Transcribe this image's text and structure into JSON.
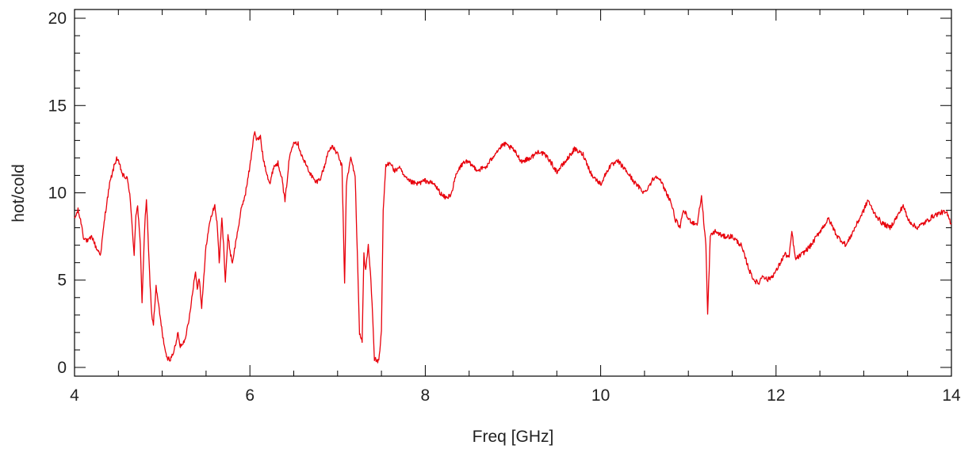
{
  "chart_data": {
    "type": "line",
    "title": "",
    "xlabel": "Freq [GHz]",
    "ylabel": "hot/cold",
    "xlim": [
      4,
      14
    ],
    "ylim": [
      -0.5,
      20.5
    ],
    "x_major_ticks": [
      4,
      6,
      8,
      10,
      12,
      14
    ],
    "x_minor_step": 0.5,
    "y_major_ticks": [
      0,
      5,
      10,
      15,
      20
    ],
    "y_minor_step": 1,
    "grid": false,
    "legend": "none",
    "series": [
      {
        "color": "#e8000b",
        "points": [
          [
            4.0,
            8.5
          ],
          [
            4.04,
            9.0
          ],
          [
            4.08,
            8.2
          ],
          [
            4.1,
            7.5
          ],
          [
            4.15,
            7.2
          ],
          [
            4.2,
            7.5
          ],
          [
            4.25,
            6.8
          ],
          [
            4.3,
            6.5
          ],
          [
            4.32,
            7.5
          ],
          [
            4.35,
            8.8
          ],
          [
            4.4,
            10.5
          ],
          [
            4.45,
            11.5
          ],
          [
            4.48,
            12.0
          ],
          [
            4.52,
            11.5
          ],
          [
            4.55,
            11.0
          ],
          [
            4.6,
            10.8
          ],
          [
            4.63,
            10.0
          ],
          [
            4.65,
            8.5
          ],
          [
            4.68,
            6.5
          ],
          [
            4.7,
            8.8
          ],
          [
            4.72,
            9.2
          ],
          [
            4.75,
            7.0
          ],
          [
            4.77,
            3.8
          ],
          [
            4.8,
            8.0
          ],
          [
            4.82,
            9.7
          ],
          [
            4.85,
            6.0
          ],
          [
            4.88,
            3.0
          ],
          [
            4.9,
            2.5
          ],
          [
            4.93,
            4.6
          ],
          [
            4.96,
            3.5
          ],
          [
            5.0,
            2.0
          ],
          [
            5.05,
            0.5
          ],
          [
            5.1,
            0.5
          ],
          [
            5.15,
            1.2
          ],
          [
            5.18,
            2.0
          ],
          [
            5.2,
            1.2
          ],
          [
            5.25,
            1.5
          ],
          [
            5.3,
            2.5
          ],
          [
            5.35,
            4.5
          ],
          [
            5.38,
            5.5
          ],
          [
            5.4,
            4.5
          ],
          [
            5.42,
            5.2
          ],
          [
            5.45,
            3.5
          ],
          [
            5.48,
            5.5
          ],
          [
            5.5,
            7.0
          ],
          [
            5.55,
            8.5
          ],
          [
            5.6,
            9.3
          ],
          [
            5.63,
            8.0
          ],
          [
            5.65,
            6.0
          ],
          [
            5.68,
            8.5
          ],
          [
            5.7,
            7.0
          ],
          [
            5.72,
            5.0
          ],
          [
            5.75,
            7.5
          ],
          [
            5.78,
            6.5
          ],
          [
            5.8,
            6.0
          ],
          [
            5.85,
            7.5
          ],
          [
            5.9,
            9.0
          ],
          [
            5.95,
            10.0
          ],
          [
            6.0,
            11.5
          ],
          [
            6.05,
            13.5
          ],
          [
            6.08,
            13.0
          ],
          [
            6.12,
            13.2
          ],
          [
            6.15,
            12.0
          ],
          [
            6.2,
            11.0
          ],
          [
            6.23,
            10.5
          ],
          [
            6.27,
            11.5
          ],
          [
            6.32,
            11.7
          ],
          [
            6.36,
            11.0
          ],
          [
            6.4,
            9.5
          ],
          [
            6.45,
            12.0
          ],
          [
            6.5,
            13.0
          ],
          [
            6.55,
            12.8
          ],
          [
            6.6,
            12.0
          ],
          [
            6.65,
            11.5
          ],
          [
            6.7,
            11.0
          ],
          [
            6.75,
            10.6
          ],
          [
            6.8,
            10.8
          ],
          [
            6.85,
            11.5
          ],
          [
            6.9,
            12.5
          ],
          [
            6.95,
            12.6
          ],
          [
            7.0,
            12.2
          ],
          [
            7.05,
            11.5
          ],
          [
            7.08,
            4.8
          ],
          [
            7.1,
            10.5
          ],
          [
            7.15,
            12.0
          ],
          [
            7.2,
            11.0
          ],
          [
            7.25,
            2.0
          ],
          [
            7.28,
            1.5
          ],
          [
            7.3,
            6.5
          ],
          [
            7.32,
            5.5
          ],
          [
            7.35,
            7.0
          ],
          [
            7.38,
            5.0
          ],
          [
            7.4,
            3.0
          ],
          [
            7.42,
            0.5
          ],
          [
            7.47,
            0.3
          ],
          [
            7.5,
            2.0
          ],
          [
            7.52,
            9.0
          ],
          [
            7.55,
            11.5
          ],
          [
            7.6,
            11.8
          ],
          [
            7.65,
            11.2
          ],
          [
            7.7,
            11.5
          ],
          [
            7.75,
            11.0
          ],
          [
            7.8,
            10.7
          ],
          [
            7.9,
            10.5
          ],
          [
            8.0,
            10.7
          ],
          [
            8.1,
            10.5
          ],
          [
            8.2,
            9.8
          ],
          [
            8.25,
            9.7
          ],
          [
            8.3,
            10.0
          ],
          [
            8.35,
            11.0
          ],
          [
            8.4,
            11.5
          ],
          [
            8.45,
            11.8
          ],
          [
            8.5,
            11.7
          ],
          [
            8.6,
            11.3
          ],
          [
            8.7,
            11.5
          ],
          [
            8.8,
            12.3
          ],
          [
            8.9,
            12.8
          ],
          [
            9.0,
            12.5
          ],
          [
            9.1,
            11.8
          ],
          [
            9.2,
            12.0
          ],
          [
            9.3,
            12.4
          ],
          [
            9.4,
            12.0
          ],
          [
            9.5,
            11.2
          ],
          [
            9.6,
            11.8
          ],
          [
            9.7,
            12.5
          ],
          [
            9.8,
            12.2
          ],
          [
            9.9,
            11.0
          ],
          [
            10.0,
            10.5
          ],
          [
            10.1,
            11.5
          ],
          [
            10.2,
            11.8
          ],
          [
            10.3,
            11.2
          ],
          [
            10.4,
            10.5
          ],
          [
            10.5,
            10.0
          ],
          [
            10.6,
            10.8
          ],
          [
            10.65,
            11.0
          ],
          [
            10.7,
            10.5
          ],
          [
            10.8,
            9.5
          ],
          [
            10.85,
            8.5
          ],
          [
            10.9,
            8.0
          ],
          [
            10.95,
            9.0
          ],
          [
            11.0,
            8.5
          ],
          [
            11.05,
            8.3
          ],
          [
            11.1,
            8.2
          ],
          [
            11.15,
            9.8
          ],
          [
            11.2,
            7.0
          ],
          [
            11.22,
            3.0
          ],
          [
            11.25,
            7.5
          ],
          [
            11.3,
            7.8
          ],
          [
            11.4,
            7.5
          ],
          [
            11.5,
            7.5
          ],
          [
            11.6,
            7.0
          ],
          [
            11.7,
            5.5
          ],
          [
            11.75,
            5.0
          ],
          [
            11.8,
            4.8
          ],
          [
            11.85,
            5.3
          ],
          [
            11.9,
            5.0
          ],
          [
            11.95,
            5.2
          ],
          [
            12.0,
            5.5
          ],
          [
            12.05,
            6.0
          ],
          [
            12.1,
            6.5
          ],
          [
            12.15,
            6.3
          ],
          [
            12.18,
            7.8
          ],
          [
            12.22,
            6.2
          ],
          [
            12.3,
            6.5
          ],
          [
            12.4,
            7.0
          ],
          [
            12.5,
            7.8
          ],
          [
            12.6,
            8.5
          ],
          [
            12.7,
            7.5
          ],
          [
            12.8,
            7.0
          ],
          [
            12.9,
            8.0
          ],
          [
            13.0,
            9.0
          ],
          [
            13.05,
            9.6
          ],
          [
            13.1,
            9.0
          ],
          [
            13.2,
            8.3
          ],
          [
            13.3,
            8.0
          ],
          [
            13.4,
            8.8
          ],
          [
            13.45,
            9.3
          ],
          [
            13.5,
            8.5
          ],
          [
            13.6,
            8.0
          ],
          [
            13.7,
            8.3
          ],
          [
            13.8,
            8.7
          ],
          [
            13.9,
            8.9
          ],
          [
            13.95,
            8.8
          ],
          [
            14.0,
            8.2
          ]
        ]
      }
    ]
  }
}
